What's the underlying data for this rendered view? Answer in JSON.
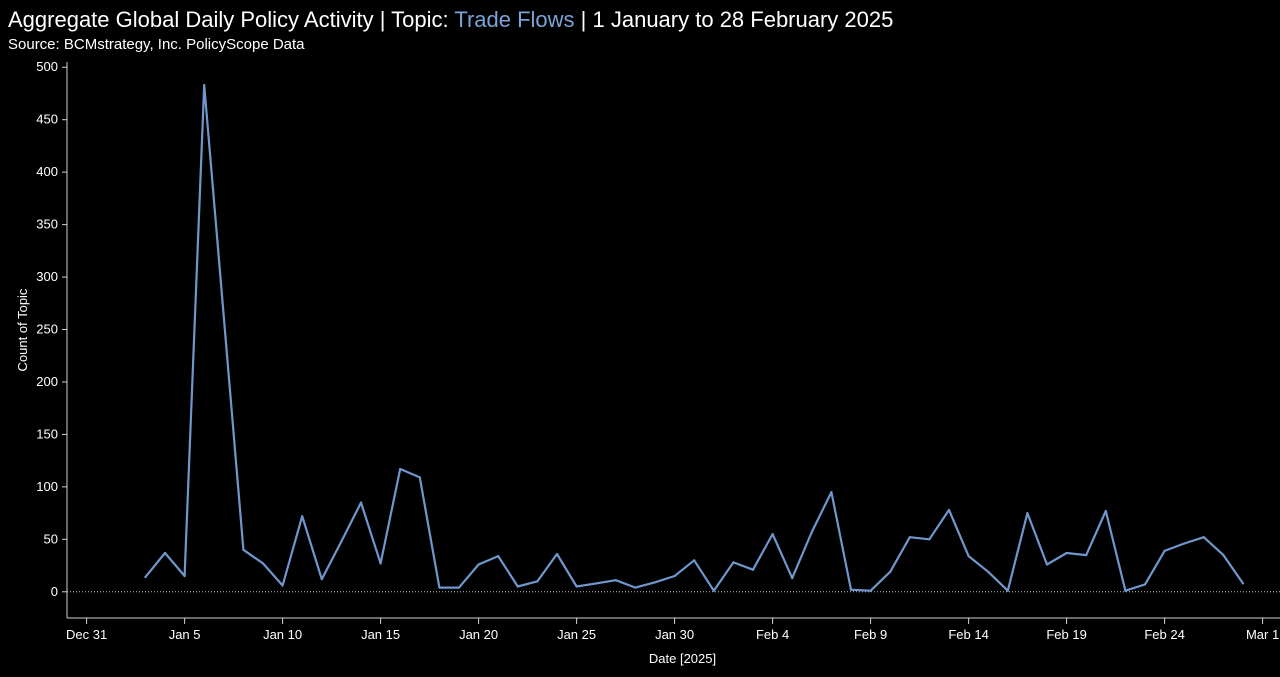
{
  "header": {
    "title_prefix": "Aggregate Global Daily Policy Activity | Topic: ",
    "title_topic": "Trade Flows",
    "title_suffix": " | 1 January to 28 February 2025",
    "subtitle": "Source: BCMstrategy, Inc. PolicyScope Data"
  },
  "colors": {
    "line": "#6f97cc",
    "topic_text": "#7ba3d6",
    "axis": "#d0d0d0",
    "zero_line": "#bfbfbf",
    "background": "#000000"
  },
  "chart_data": {
    "type": "line",
    "title": "Aggregate Global Daily Policy Activity | Topic: Trade Flows | 1 January to 28 February 2025",
    "subtitle": "Source: BCMstrategy, Inc. PolicyScope Data",
    "xlabel": "Date [2025]",
    "ylabel": "Count of Topic",
    "ylim": [
      -25,
      505
    ],
    "yticks": [
      0,
      50,
      100,
      150,
      200,
      250,
      300,
      350,
      400,
      450,
      500
    ],
    "xlim": [
      "2024-12-30",
      "2025-03-03"
    ],
    "xticks": [
      {
        "date": "2024-12-31",
        "label": "Dec 31"
      },
      {
        "date": "2025-01-05",
        "label": "Jan 5"
      },
      {
        "date": "2025-01-10",
        "label": "Jan 10"
      },
      {
        "date": "2025-01-15",
        "label": "Jan 15"
      },
      {
        "date": "2025-01-20",
        "label": "Jan 20"
      },
      {
        "date": "2025-01-25",
        "label": "Jan 25"
      },
      {
        "date": "2025-01-30",
        "label": "Jan 30"
      },
      {
        "date": "2025-02-04",
        "label": "Feb 4"
      },
      {
        "date": "2025-02-09",
        "label": "Feb 9"
      },
      {
        "date": "2025-02-14",
        "label": "Feb 14"
      },
      {
        "date": "2025-02-19",
        "label": "Feb 19"
      },
      {
        "date": "2025-02-24",
        "label": "Feb 24"
      },
      {
        "date": "2025-03-01",
        "label": "Mar 1"
      }
    ],
    "grid": false,
    "zero_reference_line": true,
    "series": [
      {
        "x": [
          "2025-01-03",
          "2025-01-04",
          "2025-01-05",
          "2025-01-06",
          "2025-01-07",
          "2025-01-08",
          "2025-01-09",
          "2025-01-10",
          "2025-01-11",
          "2025-01-12",
          "2025-01-13",
          "2025-01-14",
          "2025-01-15",
          "2025-01-16",
          "2025-01-17",
          "2025-01-18",
          "2025-01-19",
          "2025-01-20",
          "2025-01-21",
          "2025-01-22",
          "2025-01-23",
          "2025-01-24",
          "2025-01-25",
          "2025-01-26",
          "2025-01-27",
          "2025-01-28",
          "2025-01-29",
          "2025-01-30",
          "2025-01-31",
          "2025-02-01",
          "2025-02-02",
          "2025-02-03",
          "2025-02-04",
          "2025-02-05",
          "2025-02-06",
          "2025-02-07",
          "2025-02-08",
          "2025-02-09",
          "2025-02-10",
          "2025-02-11",
          "2025-02-12",
          "2025-02-13",
          "2025-02-14",
          "2025-02-15",
          "2025-02-16",
          "2025-02-17",
          "2025-02-18",
          "2025-02-19",
          "2025-02-20",
          "2025-02-21",
          "2025-02-22",
          "2025-02-23",
          "2025-02-24",
          "2025-02-25",
          "2025-02-26",
          "2025-02-27",
          "2025-02-28"
        ],
        "values": [
          14,
          37,
          15,
          483,
          262,
          40,
          27,
          6,
          72,
          12,
          48,
          85,
          27,
          117,
          109,
          4,
          4,
          26,
          34,
          5,
          10,
          36,
          5,
          8,
          11,
          4,
          9,
          15,
          30,
          1,
          28,
          21,
          55,
          13,
          57,
          95,
          2,
          1,
          19,
          52,
          50,
          78,
          34,
          19,
          1,
          75,
          26,
          37,
          35,
          77,
          1,
          7,
          39,
          46,
          52,
          35,
          8
        ]
      }
    ]
  }
}
